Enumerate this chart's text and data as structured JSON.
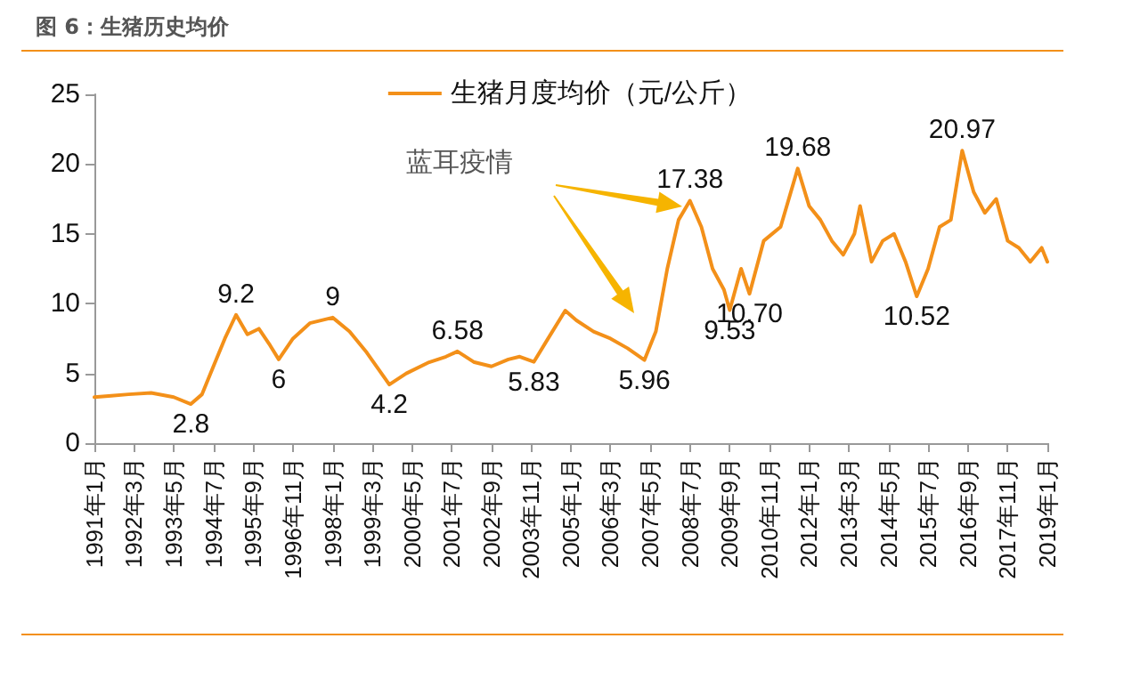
{
  "chart_data": {
    "type": "line",
    "title": "图 6：生猪历史均价",
    "x": [
      "1991-01",
      "1991-07",
      "1992-01",
      "1992-09",
      "1993-05",
      "1993-11",
      "1994-03",
      "1994-07",
      "1994-11",
      "1995-03",
      "1995-07",
      "1995-11",
      "1996-03",
      "1996-06",
      "1996-11",
      "1997-05",
      "1998-01",
      "1998-07",
      "1999-01",
      "1999-09",
      "2000-03",
      "2000-11",
      "2001-05",
      "2001-09",
      "2002-03",
      "2002-09",
      "2003-03",
      "2003-07",
      "2003-12",
      "2004-05",
      "2004-11",
      "2005-03",
      "2005-09",
      "2006-03",
      "2006-09",
      "2007-03",
      "2007-07",
      "2007-11",
      "2008-03",
      "2008-07",
      "2008-11",
      "2009-03",
      "2009-07",
      "2009-09",
      "2010-01",
      "2010-04",
      "2010-09",
      "2011-03",
      "2011-09",
      "2012-01",
      "2012-05",
      "2012-09",
      "2013-01",
      "2013-05",
      "2013-07",
      "2013-11",
      "2014-03",
      "2014-07",
      "2014-11",
      "2015-03",
      "2015-07",
      "2015-11",
      "2016-03",
      "2016-07",
      "2016-11",
      "2017-03",
      "2017-07",
      "2017-11",
      "2018-03",
      "2018-07",
      "2018-11",
      "2019-01"
    ],
    "series": [
      {
        "name": "生猪月度均价（元/公斤）",
        "color": "#f39019",
        "values": [
          3.3,
          3.4,
          3.5,
          3.6,
          3.3,
          2.8,
          3.5,
          5.5,
          7.5,
          9.2,
          7.8,
          8.2,
          7.0,
          6,
          7.5,
          8.6,
          9,
          8.0,
          6.5,
          4.2,
          5.0,
          5.8,
          6.2,
          6.58,
          5.8,
          5.5,
          6.0,
          6.2,
          5.83,
          7.5,
          9.5,
          8.8,
          8.0,
          7.5,
          6.8,
          5.96,
          8.0,
          12.5,
          16.0,
          17.38,
          15.5,
          12.5,
          11.0,
          9.53,
          12.5,
          10.7,
          14.5,
          15.5,
          19.68,
          17.0,
          16.0,
          14.5,
          13.5,
          15.0,
          17.0,
          13.0,
          14.5,
          15.0,
          13.0,
          10.52,
          12.5,
          15.5,
          16.0,
          20.97,
          18.0,
          16.5,
          17.5,
          14.5,
          14.0,
          13.0,
          14.0,
          13.0
        ],
        "value_labels": [
          null,
          null,
          null,
          null,
          null,
          "2.8",
          null,
          null,
          null,
          "9.2",
          null,
          null,
          null,
          "6",
          null,
          null,
          "9",
          null,
          null,
          "4.2",
          null,
          null,
          null,
          "6.58",
          null,
          null,
          null,
          null,
          "5.83",
          null,
          null,
          null,
          null,
          null,
          null,
          "5.96",
          null,
          null,
          null,
          "17.38",
          null,
          null,
          null,
          "9.53",
          null,
          "10.70",
          null,
          null,
          "19.68",
          null,
          null,
          null,
          null,
          null,
          null,
          null,
          null,
          null,
          null,
          "10.52",
          null,
          null,
          null,
          "20.97",
          null,
          null,
          null,
          null,
          null,
          null,
          null,
          null
        ]
      }
    ],
    "xlim": [
      "1991-01",
      "2019-01"
    ],
    "xticks": [
      {
        "value": "1991-01",
        "label": "1991年1月"
      },
      {
        "value": "1992-03",
        "label": "1992年3月"
      },
      {
        "value": "1993-05",
        "label": "1993年5月"
      },
      {
        "value": "1994-07",
        "label": "1994年7月"
      },
      {
        "value": "1995-09",
        "label": "1995年9月"
      },
      {
        "value": "1996-11",
        "label": "1996年11月"
      },
      {
        "value": "1998-01",
        "label": "1998年1月"
      },
      {
        "value": "1999-03",
        "label": "1999年3月"
      },
      {
        "value": "2000-05",
        "label": "2000年5月"
      },
      {
        "value": "2001-07",
        "label": "2001年7月"
      },
      {
        "value": "2002-09",
        "label": "2002年9月"
      },
      {
        "value": "2003-11",
        "label": "2003年11月"
      },
      {
        "value": "2005-01",
        "label": "2005年1月"
      },
      {
        "value": "2006-03",
        "label": "2006年3月"
      },
      {
        "value": "2007-05",
        "label": "2007年5月"
      },
      {
        "value": "2008-07",
        "label": "2008年7月"
      },
      {
        "value": "2009-09",
        "label": "2009年9月"
      },
      {
        "value": "2010-11",
        "label": "2010年11月"
      },
      {
        "value": "2012-01",
        "label": "2012年1月"
      },
      {
        "value": "2013-03",
        "label": "2013年3月"
      },
      {
        "value": "2014-05",
        "label": "2014年5月"
      },
      {
        "value": "2015-07",
        "label": "2015年7月"
      },
      {
        "value": "2016-09",
        "label": "2016年9月"
      },
      {
        "value": "2017-11",
        "label": "2017年11月"
      },
      {
        "value": "2019-01",
        "label": "2019年1月"
      }
    ],
    "ylim": [
      0,
      25
    ],
    "yticks": [
      0,
      5,
      10,
      15,
      20,
      25
    ],
    "grid": false,
    "legend": "top",
    "marker": "none",
    "line_style": "solid",
    "annotations": [
      "蓝耳疫情"
    ]
  }
}
